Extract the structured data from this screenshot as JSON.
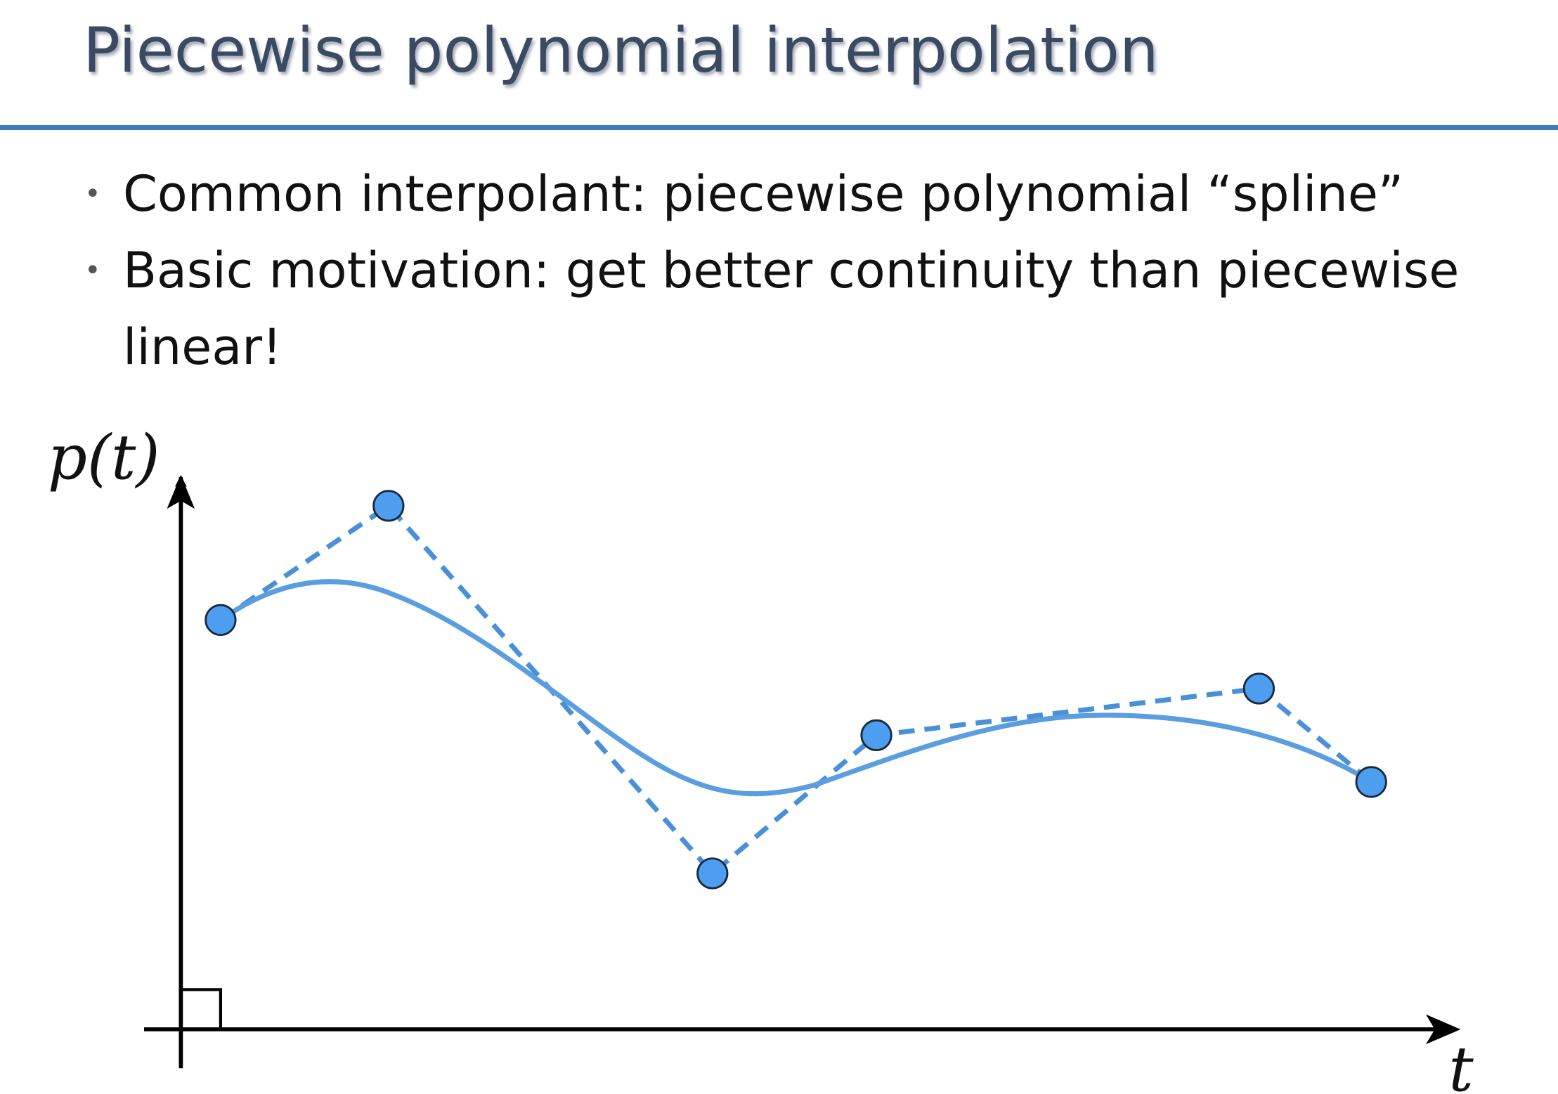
{
  "header": {
    "title": "Piecewise polynomial interpolation"
  },
  "bullets": [
    "Common interpolant: piecewise polynomial “spline”",
    "Basic motivation: get better continuity than piecewise linear!"
  ],
  "diagram": {
    "y_label": "p(t)",
    "x_label": "t"
  }
}
